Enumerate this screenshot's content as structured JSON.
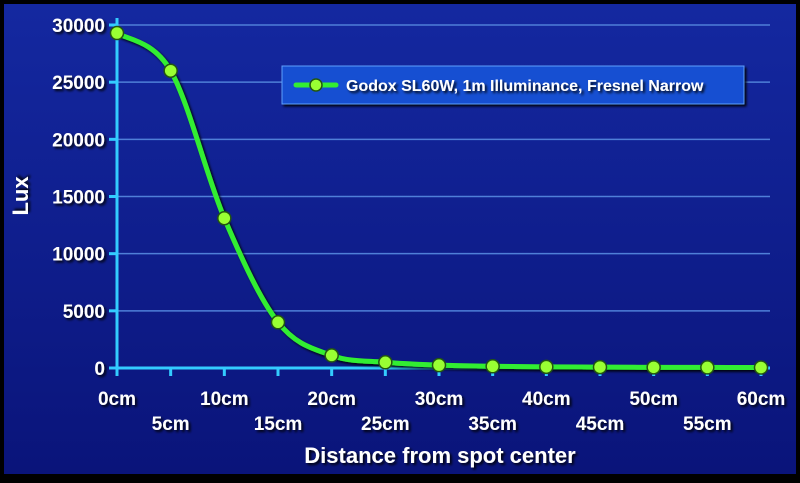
{
  "chart_data": {
    "type": "line",
    "title": "",
    "xlabel": "Distance from spot center",
    "ylabel": "Lux",
    "ylim": [
      0,
      30000
    ],
    "yticks": [
      0,
      5000,
      10000,
      15000,
      20000,
      25000,
      30000
    ],
    "categories": [
      "0cm",
      "5cm",
      "10cm",
      "15cm",
      "20cm",
      "25cm",
      "30cm",
      "35cm",
      "40cm",
      "45cm",
      "50cm",
      "55cm",
      "60cm"
    ],
    "series": [
      {
        "name": "Godox SL60W, 1m Illuminance, Fresnel Narrow",
        "values": [
          29300,
          26000,
          13100,
          4000,
          1100,
          500,
          250,
          150,
          100,
          80,
          60,
          50,
          40
        ],
        "color": "#33ee33",
        "marker_color": "#99ff33"
      }
    ],
    "grid": true,
    "legend_position": "top-right"
  },
  "colors": {
    "plot_background_top": "#1428a0",
    "plot_background_bottom": "#0a147a",
    "axis": "#33ccff",
    "gridline": "#4f7fd8",
    "text": "#ffffff",
    "legend_background": "#1450d2",
    "legend_border": "#5fa0ff"
  }
}
